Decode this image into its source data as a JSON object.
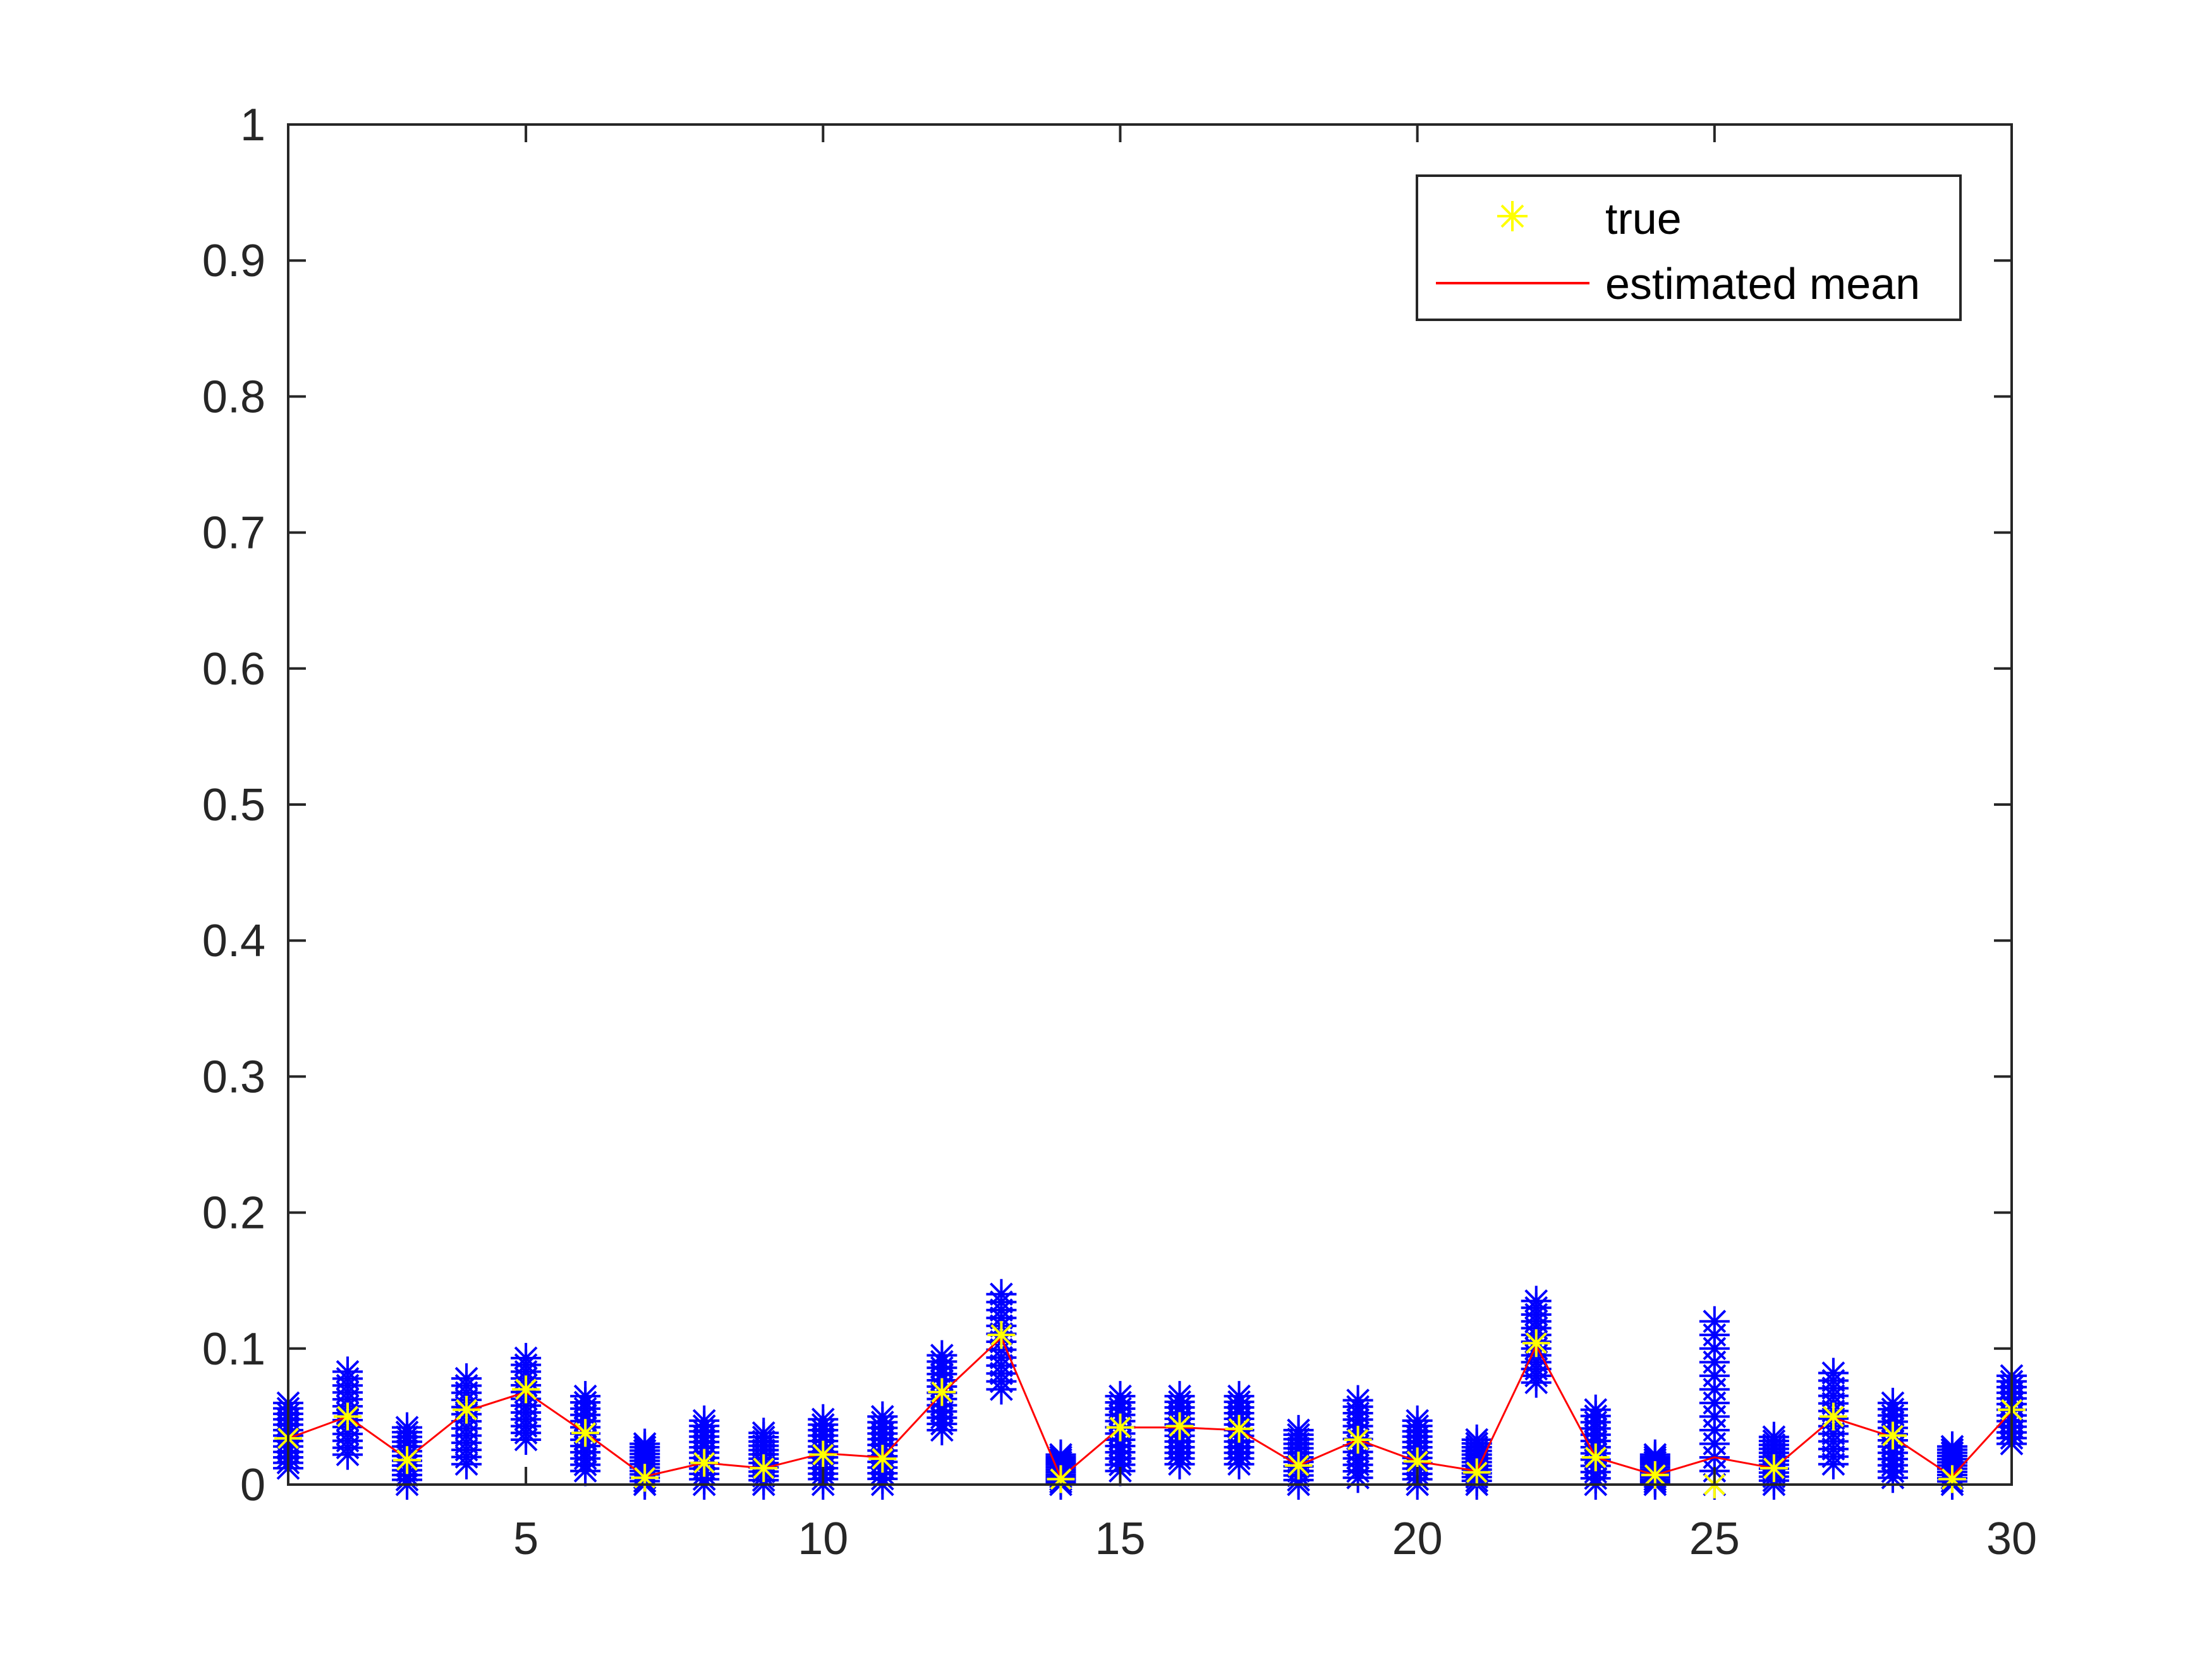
{
  "chart_data": {
    "type": "scatter",
    "title": "",
    "xlabel": "",
    "ylabel": "",
    "xlim": [
      1,
      30
    ],
    "ylim": [
      0,
      1
    ],
    "xticks": [
      5,
      10,
      15,
      20,
      25,
      30
    ],
    "xtick_labels": [
      "5",
      "10",
      "15",
      "20",
      "25",
      "30"
    ],
    "yticks": [
      0,
      0.1,
      0.2,
      0.3,
      0.4,
      0.5,
      0.6,
      0.7,
      0.8,
      0.9,
      1
    ],
    "ytick_labels": [
      "0",
      "0.1",
      "0.2",
      "0.3",
      "0.4",
      "0.5",
      "0.6",
      "0.7",
      "0.8",
      "0.9",
      "1"
    ],
    "grid": false,
    "legend_position": "top-right",
    "x": [
      1,
      2,
      3,
      4,
      5,
      6,
      7,
      8,
      9,
      10,
      11,
      12,
      13,
      14,
      15,
      16,
      17,
      18,
      19,
      20,
      21,
      22,
      23,
      24,
      25,
      26,
      27,
      28,
      29,
      30
    ],
    "samples": {
      "color": "#0000ff",
      "marker": "asterisk",
      "ranges": [
        [
          0.012,
          0.06
        ],
        [
          0.022,
          0.083
        ],
        [
          0.0,
          0.042
        ],
        [
          0.015,
          0.078
        ],
        [
          0.033,
          0.093
        ],
        [
          0.01,
          0.065
        ],
        [
          0.0,
          0.03
        ],
        [
          0.0,
          0.047
        ],
        [
          0.0,
          0.038
        ],
        [
          0.0,
          0.048
        ],
        [
          0.0,
          0.05
        ],
        [
          0.04,
          0.095
        ],
        [
          0.07,
          0.14
        ],
        [
          0.0,
          0.022
        ],
        [
          0.01,
          0.065
        ],
        [
          0.015,
          0.065
        ],
        [
          0.015,
          0.065
        ],
        [
          0.0,
          0.04
        ],
        [
          0.005,
          0.062
        ],
        [
          0.0,
          0.047
        ],
        [
          0.0,
          0.033
        ],
        [
          0.075,
          0.135
        ],
        [
          0.0,
          0.055
        ],
        [
          0.0,
          0.022
        ],
        [
          0.0,
          0.12
        ],
        [
          0.0,
          0.035
        ],
        [
          0.015,
          0.082
        ],
        [
          0.005,
          0.06
        ],
        [
          0.0,
          0.028
        ],
        [
          0.03,
          0.08
        ]
      ]
    },
    "series": [
      {
        "name": "true",
        "type": "scatter",
        "color": "#ffff00",
        "marker": "asterisk",
        "values": [
          0.034,
          0.05,
          0.018,
          0.055,
          0.07,
          0.038,
          0.005,
          0.016,
          0.012,
          0.022,
          0.019,
          0.068,
          0.11,
          0.004,
          0.042,
          0.043,
          0.041,
          0.014,
          0.033,
          0.017,
          0.009,
          0.104,
          0.02,
          0.007,
          0.0,
          0.012,
          0.05,
          0.036,
          0.004,
          0.055
        ]
      },
      {
        "name": "estimated mean",
        "type": "line",
        "color": "#ff0000",
        "values": [
          0.034,
          0.05,
          0.019,
          0.054,
          0.068,
          0.038,
          0.006,
          0.016,
          0.012,
          0.023,
          0.02,
          0.067,
          0.108,
          0.005,
          0.042,
          0.042,
          0.04,
          0.014,
          0.033,
          0.017,
          0.01,
          0.102,
          0.02,
          0.007,
          0.02,
          0.012,
          0.049,
          0.035,
          0.006,
          0.054
        ]
      }
    ]
  }
}
